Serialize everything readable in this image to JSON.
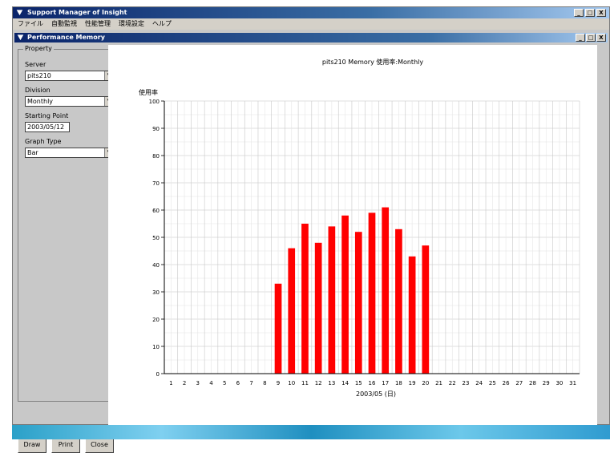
{
  "window": {
    "title": "Support Manager of Insight",
    "controls": [
      "_",
      "□",
      "X"
    ]
  },
  "menu": [
    "ファイル",
    "自動監視",
    "性能管理",
    "環境設定",
    "ヘルプ"
  ],
  "inner_window": {
    "title": "Performance Memory"
  },
  "property": {
    "group_label": "Property",
    "server_label": "Server",
    "server_value": "pits210",
    "division_label": "Division",
    "division_value": "Monthly",
    "starting_point_label": "Starting Point",
    "starting_point_value": "2003/05/12",
    "graph_type_label": "Graph Type",
    "graph_type_value": "Bar"
  },
  "buttons": {
    "draw": "Draw",
    "print": "Print",
    "close": "Close"
  },
  "chart_data": {
    "type": "bar",
    "title": "pits210 Memory 使用率:Monthly",
    "ylabel": "使用率",
    "xlabel": "2003/05 (日)",
    "ylim": [
      0,
      100
    ],
    "yticks": [
      0,
      10,
      20,
      30,
      40,
      50,
      60,
      70,
      80,
      90,
      100
    ],
    "categories": [
      "1",
      "2",
      "3",
      "4",
      "5",
      "6",
      "7",
      "8",
      "9",
      "10",
      "11",
      "12",
      "13",
      "14",
      "15",
      "16",
      "17",
      "18",
      "19",
      "20",
      "21",
      "22",
      "23",
      "24",
      "25",
      "26",
      "27",
      "28",
      "29",
      "30",
      "31"
    ],
    "values": [
      null,
      null,
      null,
      null,
      null,
      null,
      null,
      null,
      33,
      46,
      55,
      48,
      54,
      58,
      52,
      59,
      61,
      53,
      43,
      47,
      null,
      null,
      null,
      null,
      null,
      null,
      null,
      null,
      null,
      null,
      null
    ],
    "bar_color": "#ff0000",
    "grid": true
  }
}
